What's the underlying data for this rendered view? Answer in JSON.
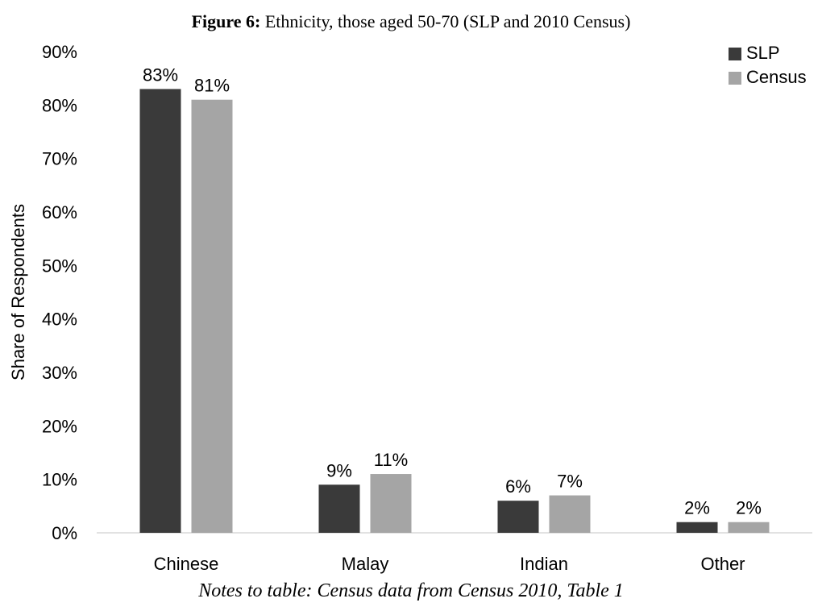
{
  "figure_label": "Figure 6:",
  "figure_title": "Ethnicity, those aged 50-70 (SLP and 2010 Census)",
  "notes": "Notes to table: Census data from Census 2010, Table 1",
  "colors": {
    "SLP": "#3a3a3a",
    "Census": "#a5a5a5",
    "axis": "#d9d9d9"
  },
  "chart_data": {
    "type": "bar",
    "categories": [
      "Chinese",
      "Malay",
      "Indian",
      "Other"
    ],
    "series": [
      {
        "name": "SLP",
        "values": [
          0.83,
          0.09,
          0.06,
          0.02
        ],
        "labels": [
          "83%",
          "9%",
          "6%",
          "2%"
        ]
      },
      {
        "name": "Census",
        "values": [
          0.81,
          0.11,
          0.07,
          0.02
        ],
        "labels": [
          "81%",
          "11%",
          "7%",
          "2%"
        ]
      }
    ],
    "ylabel": "Share of Respondents",
    "ylim": [
      0,
      0.9
    ],
    "yticks": [
      "0%",
      "10%",
      "20%",
      "30%",
      "40%",
      "50%",
      "60%",
      "70%",
      "80%",
      "90%"
    ],
    "grid": false,
    "legend": "top-right"
  }
}
